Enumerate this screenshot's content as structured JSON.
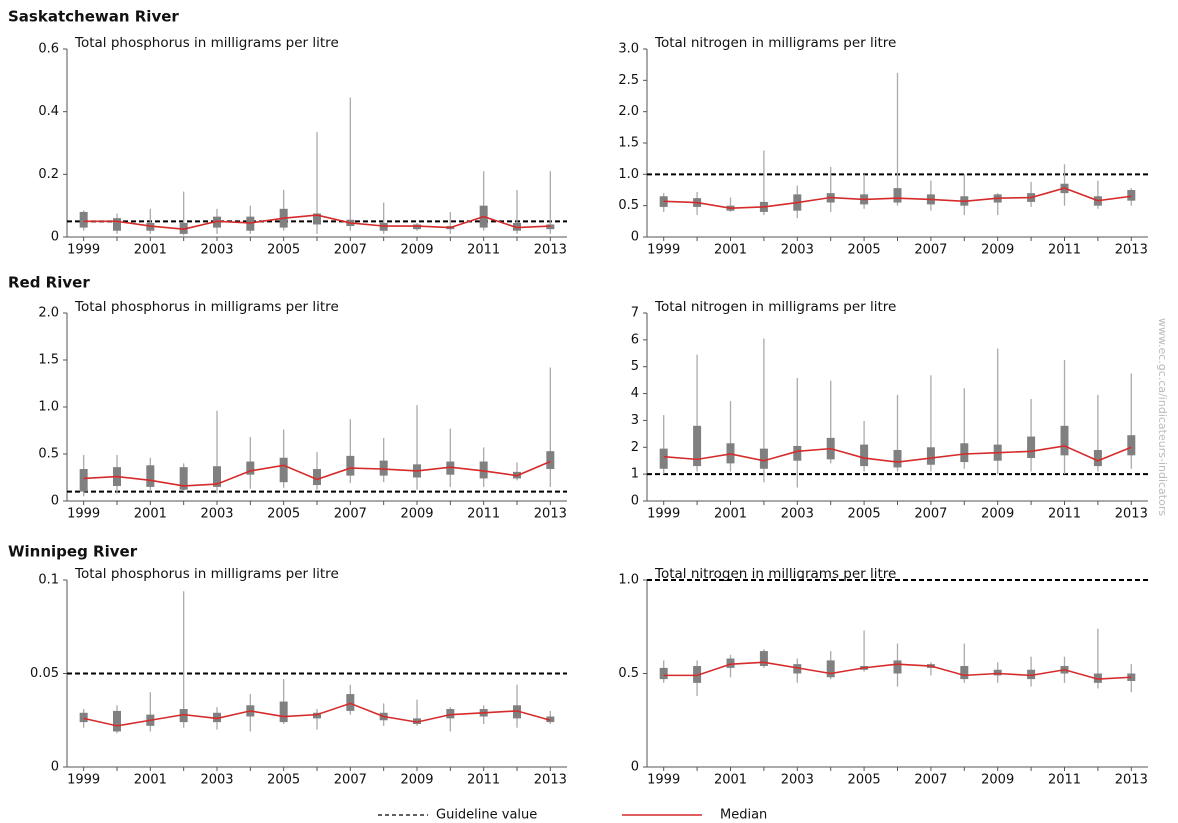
{
  "sections": [
    "Saskatchewan River",
    "Red River",
    "Winnipeg River"
  ],
  "watermark": "www.ec.gc.ca/indicateurs-indicators",
  "legend": [
    {
      "label": "Guideline value",
      "style": "dashed",
      "color": "#000000"
    },
    {
      "label": "Median",
      "style": "solid",
      "color": "#d62b2b"
    }
  ],
  "chart_data": [
    {
      "type": "box",
      "title": "Total phosphorus in milligrams per litre",
      "x": [
        1999,
        2000,
        2001,
        2002,
        2003,
        2004,
        2005,
        2006,
        2007,
        2008,
        2009,
        2010,
        2011,
        2012,
        2013
      ],
      "xlim": [
        1998.5,
        2013.5
      ],
      "xticks": [
        1999,
        2001,
        2003,
        2005,
        2007,
        2009,
        2011,
        2013
      ],
      "ylim": [
        0,
        0.6
      ],
      "yticks": [
        0,
        0.2,
        0.4,
        0.6
      ],
      "guideline": 0.05,
      "box_color": "#808080",
      "whisker_color": "#aaaaaa",
      "median_color": "#d62b2b",
      "min": [
        0.02,
        0.01,
        0.01,
        0.005,
        0.01,
        0.01,
        0.02,
        0.01,
        0.02,
        0.01,
        0.02,
        0.01,
        0.02,
        0.01,
        0.01
      ],
      "q1": [
        0.03,
        0.02,
        0.02,
        0.01,
        0.03,
        0.02,
        0.03,
        0.04,
        0.035,
        0.02,
        0.025,
        0.025,
        0.03,
        0.02,
        0.025
      ],
      "median": [
        0.05,
        0.05,
        0.035,
        0.025,
        0.05,
        0.045,
        0.06,
        0.07,
        0.045,
        0.035,
        0.035,
        0.03,
        0.065,
        0.03,
        0.035
      ],
      "q3": [
        0.08,
        0.06,
        0.045,
        0.045,
        0.065,
        0.065,
        0.09,
        0.075,
        0.055,
        0.045,
        0.04,
        0.035,
        0.1,
        0.045,
        0.04
      ],
      "max": [
        0.085,
        0.075,
        0.09,
        0.145,
        0.09,
        0.1,
        0.15,
        0.335,
        0.445,
        0.11,
        0.045,
        0.08,
        0.21,
        0.15,
        0.21
      ]
    },
    {
      "type": "box",
      "title": "Total nitrogen in milligrams per litre",
      "x": [
        1999,
        2000,
        2001,
        2002,
        2003,
        2004,
        2005,
        2006,
        2007,
        2008,
        2009,
        2010,
        2011,
        2012,
        2013
      ],
      "xlim": [
        1998.5,
        2013.5
      ],
      "xticks": [
        1999,
        2001,
        2003,
        2005,
        2007,
        2009,
        2011,
        2013
      ],
      "ylim": [
        0,
        3
      ],
      "yticks": [
        0,
        0.5,
        {
          "value": 1,
          "label": "1.0"
        },
        1.5,
        {
          "value": 2,
          "label": "2.0"
        },
        2.5,
        {
          "value": 3,
          "label": "3.0"
        }
      ],
      "guideline": 1,
      "box_color": "#808080",
      "whisker_color": "#aaaaaa",
      "median_color": "#d62b2b",
      "min": [
        0.4,
        0.35,
        0.4,
        0.35,
        0.3,
        0.4,
        0.45,
        0.5,
        0.42,
        0.35,
        0.35,
        0.48,
        0.5,
        0.45,
        0.5
      ],
      "q1": [
        0.48,
        0.48,
        0.42,
        0.4,
        0.42,
        0.55,
        0.52,
        0.55,
        0.52,
        0.5,
        0.55,
        0.56,
        0.7,
        0.5,
        0.58
      ],
      "median": [
        0.57,
        0.55,
        0.46,
        0.48,
        0.55,
        0.63,
        0.6,
        0.62,
        0.6,
        0.57,
        0.62,
        0.63,
        0.78,
        0.58,
        0.65
      ],
      "q3": [
        0.65,
        0.62,
        0.5,
        0.56,
        0.68,
        0.7,
        0.68,
        0.78,
        0.68,
        0.65,
        0.68,
        0.7,
        0.85,
        0.65,
        0.75
      ],
      "max": [
        0.7,
        0.72,
        0.63,
        1.38,
        0.82,
        1.12,
        1.0,
        2.62,
        0.9,
        1.0,
        0.7,
        0.88,
        1.16,
        0.9,
        0.78
      ]
    },
    {
      "type": "box",
      "title": "Total phosphorus in milligrams per litre",
      "x": [
        1999,
        2000,
        2001,
        2002,
        2003,
        2004,
        2005,
        2006,
        2007,
        2008,
        2009,
        2010,
        2011,
        2012,
        2013
      ],
      "xlim": [
        1998.5,
        2013.5
      ],
      "xticks": [
        1999,
        2001,
        2003,
        2005,
        2007,
        2009,
        2011,
        2013
      ],
      "ylim": [
        0,
        2
      ],
      "yticks": [
        0,
        0.5,
        {
          "value": 1,
          "label": "1.0"
        },
        1.5,
        {
          "value": 2,
          "label": "2.0"
        }
      ],
      "guideline": 0.1,
      "box_color": "#808080",
      "whisker_color": "#aaaaaa",
      "median_color": "#d62b2b",
      "min": [
        0.05,
        0.08,
        0.1,
        0.1,
        0.08,
        0.13,
        0.14,
        0.12,
        0.19,
        0.2,
        0.12,
        0.15,
        0.15,
        0.22,
        0.15
      ],
      "q1": [
        0.1,
        0.16,
        0.15,
        0.12,
        0.15,
        0.28,
        0.2,
        0.17,
        0.27,
        0.27,
        0.25,
        0.28,
        0.24,
        0.24,
        0.34
      ],
      "median": [
        0.24,
        0.26,
        0.22,
        0.16,
        0.18,
        0.32,
        0.38,
        0.23,
        0.35,
        0.34,
        0.32,
        0.36,
        0.32,
        0.27,
        0.42
      ],
      "q3": [
        0.34,
        0.36,
        0.38,
        0.36,
        0.37,
        0.42,
        0.46,
        0.34,
        0.48,
        0.43,
        0.39,
        0.42,
        0.42,
        0.31,
        0.53
      ],
      "max": [
        0.49,
        0.49,
        0.46,
        0.4,
        0.96,
        0.68,
        0.76,
        0.52,
        0.87,
        0.67,
        1.02,
        0.77,
        0.57,
        0.41,
        1.42
      ]
    },
    {
      "type": "box",
      "title": "Total nitrogen in milligrams per litre",
      "x": [
        1999,
        2000,
        2001,
        2002,
        2003,
        2004,
        2005,
        2006,
        2007,
        2008,
        2009,
        2010,
        2011,
        2012,
        2013
      ],
      "xlim": [
        1998.5,
        2013.5
      ],
      "xticks": [
        1999,
        2001,
        2003,
        2005,
        2007,
        2009,
        2011,
        2013
      ],
      "ylim": [
        0,
        7
      ],
      "yticks": [
        0,
        1,
        2,
        3,
        4,
        5,
        6,
        7
      ],
      "guideline": 1,
      "box_color": "#808080",
      "whisker_color": "#aaaaaa",
      "median_color": "#d62b2b",
      "min": [
        1.0,
        1.1,
        1.1,
        0.7,
        0.5,
        1.4,
        1.1,
        1.1,
        1.1,
        1.2,
        1.0,
        1.1,
        1.0,
        1.1,
        1.2
      ],
      "q1": [
        1.2,
        1.3,
        1.4,
        1.2,
        1.5,
        1.55,
        1.3,
        1.25,
        1.35,
        1.45,
        1.5,
        1.6,
        1.7,
        1.3,
        1.7
      ],
      "median": [
        1.65,
        1.55,
        1.75,
        1.5,
        1.85,
        1.95,
        1.6,
        1.45,
        1.6,
        1.75,
        1.8,
        1.85,
        2.05,
        1.5,
        2.0
      ],
      "q3": [
        1.95,
        2.8,
        2.15,
        1.95,
        2.05,
        2.35,
        2.1,
        1.9,
        2.0,
        2.15,
        2.1,
        2.4,
        2.8,
        1.9,
        2.45
      ],
      "max": [
        3.2,
        5.45,
        3.72,
        6.05,
        4.58,
        4.48,
        2.98,
        3.95,
        4.68,
        4.2,
        5.68,
        3.8,
        5.25,
        3.95,
        4.75
      ]
    },
    {
      "type": "box",
      "title": "Total phosphorus in milligrams per litre",
      "x": [
        1999,
        2000,
        2001,
        2002,
        2003,
        2004,
        2005,
        2006,
        2007,
        2008,
        2009,
        2010,
        2011,
        2012,
        2013
      ],
      "xlim": [
        1998.5,
        2013.5
      ],
      "xticks": [
        1999,
        2001,
        2003,
        2005,
        2007,
        2009,
        2011,
        2013
      ],
      "ylim": [
        0,
        0.1
      ],
      "yticks": [
        0,
        0.05,
        0.1
      ],
      "guideline": 0.05,
      "box_color": "#808080",
      "whisker_color": "#aaaaaa",
      "median_color": "#d62b2b",
      "min": [
        0.021,
        0.018,
        0.019,
        0.021,
        0.02,
        0.019,
        0.023,
        0.02,
        0.028,
        0.022,
        0.022,
        0.019,
        0.023,
        0.021,
        0.023
      ],
      "q1": [
        0.024,
        0.019,
        0.022,
        0.024,
        0.024,
        0.027,
        0.024,
        0.026,
        0.03,
        0.025,
        0.023,
        0.026,
        0.027,
        0.026,
        0.024
      ],
      "median": [
        0.026,
        0.022,
        0.025,
        0.028,
        0.026,
        0.03,
        0.027,
        0.028,
        0.034,
        0.027,
        0.024,
        0.028,
        0.029,
        0.03,
        0.025
      ],
      "q3": [
        0.029,
        0.03,
        0.028,
        0.031,
        0.029,
        0.033,
        0.035,
        0.029,
        0.039,
        0.029,
        0.026,
        0.031,
        0.031,
        0.033,
        0.027
      ],
      "max": [
        0.031,
        0.033,
        0.04,
        0.094,
        0.032,
        0.039,
        0.047,
        0.031,
        0.044,
        0.034,
        0.036,
        0.032,
        0.033,
        0.044,
        0.03
      ]
    },
    {
      "type": "box",
      "title": "Total nitrogen in milligrams per litre",
      "x": [
        1999,
        2000,
        2001,
        2002,
        2003,
        2004,
        2005,
        2006,
        2007,
        2008,
        2009,
        2010,
        2011,
        2012,
        2013
      ],
      "xlim": [
        1998.5,
        2013.5
      ],
      "xticks": [
        1999,
        2001,
        2003,
        2005,
        2007,
        2009,
        2011,
        2013
      ],
      "ylim": [
        0,
        1
      ],
      "yticks": [
        0,
        0.5,
        {
          "value": 1,
          "label": "1.0"
        }
      ],
      "guideline": 1,
      "box_color": "#808080",
      "whisker_color": "#aaaaaa",
      "median_color": "#d62b2b",
      "min": [
        0.45,
        0.38,
        0.48,
        0.53,
        0.45,
        0.47,
        0.51,
        0.43,
        0.49,
        0.45,
        0.45,
        0.43,
        0.45,
        0.42,
        0.4
      ],
      "q1": [
        0.47,
        0.45,
        0.53,
        0.54,
        0.5,
        0.48,
        0.52,
        0.5,
        0.53,
        0.47,
        0.49,
        0.47,
        0.5,
        0.45,
        0.46
      ],
      "median": [
        0.49,
        0.49,
        0.55,
        0.56,
        0.53,
        0.5,
        0.53,
        0.55,
        0.54,
        0.49,
        0.5,
        0.49,
        0.52,
        0.47,
        0.48
      ],
      "q3": [
        0.53,
        0.54,
        0.58,
        0.62,
        0.55,
        0.57,
        0.54,
        0.57,
        0.55,
        0.54,
        0.52,
        0.52,
        0.54,
        0.5,
        0.5
      ],
      "max": [
        0.57,
        0.57,
        0.6,
        0.63,
        0.58,
        0.62,
        0.73,
        0.66,
        0.56,
        0.66,
        0.56,
        0.59,
        0.59,
        0.74,
        0.55
      ]
    }
  ]
}
